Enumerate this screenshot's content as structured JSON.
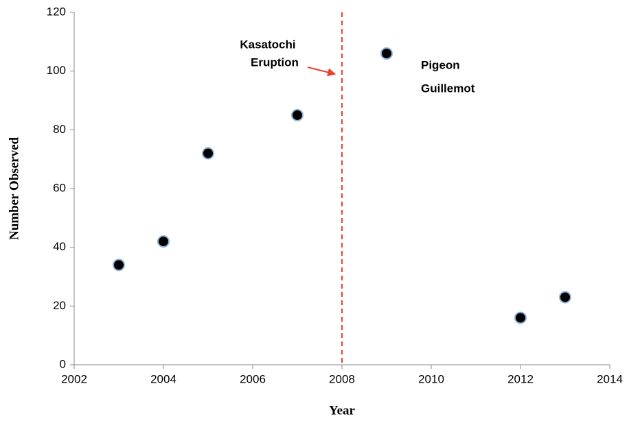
{
  "chart_data": {
    "type": "scatter",
    "x_label": "Year",
    "y_label": "Number Observed",
    "x": [
      2003,
      2004,
      2005,
      2007,
      2009,
      2012,
      2013
    ],
    "values": [
      34,
      42,
      72,
      85,
      106,
      16,
      23
    ],
    "color": "#000000",
    "edge_color": "#8fb3d9",
    "xlim": [
      2002,
      2014
    ],
    "xticks": [
      2002,
      2004,
      2006,
      2008,
      2010,
      2012,
      2014
    ],
    "ylim": [
      0,
      120
    ],
    "yticks": [
      0,
      20,
      40,
      60,
      80,
      100,
      120
    ],
    "grid": false,
    "vline": {
      "x": 2008,
      "color": "#e8412c",
      "label": [
        "Kasatochi",
        "Eruption"
      ]
    },
    "annotation": [
      "Pigeon",
      "Guillemot"
    ]
  }
}
